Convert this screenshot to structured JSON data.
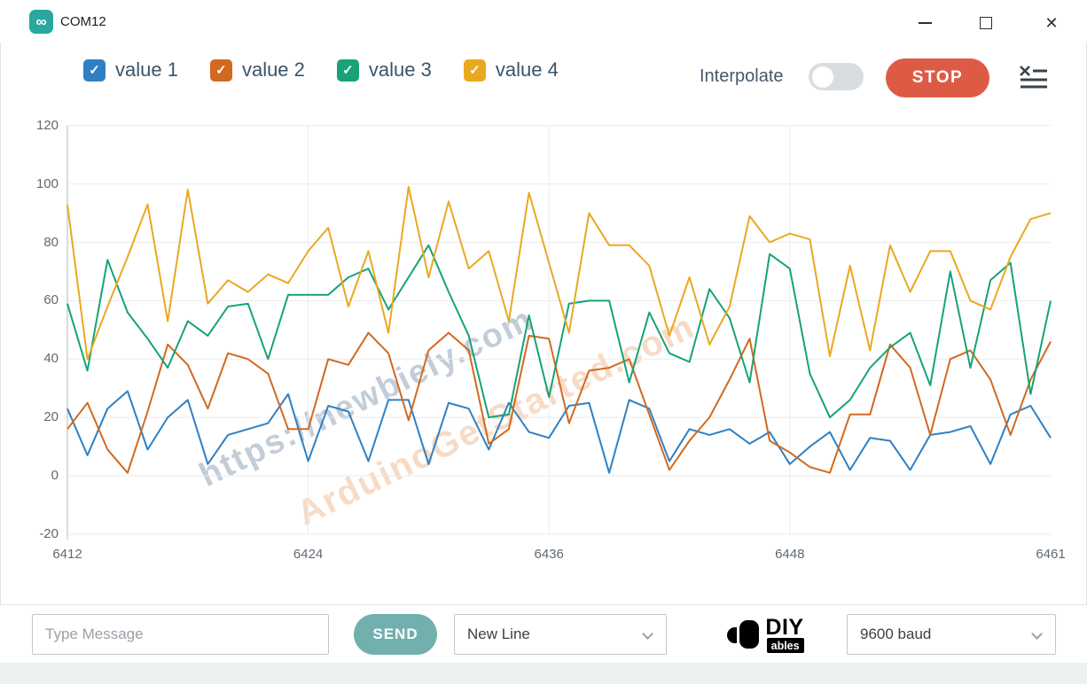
{
  "window": {
    "title": "COM12"
  },
  "toolbar": {
    "interpolate_label": "Interpolate",
    "interpolate_on": false,
    "stop_label": "STOP"
  },
  "watermarks": {
    "wm1": "https://newbiely.com",
    "wm2": "ArduinoGetStarted.com"
  },
  "chart_data": {
    "type": "line",
    "x_start": 6412,
    "x_ticks": [
      6412,
      6424,
      6436,
      6448,
      6461
    ],
    "y_ticks": [
      120,
      100,
      80,
      60,
      40,
      20,
      0,
      -20
    ],
    "ylim": [
      -20,
      120
    ],
    "grid": true,
    "legend_position": "top-left",
    "series": [
      {
        "name": "value 1",
        "color": "#2f80c3",
        "checked": true,
        "values": [
          23,
          7,
          23,
          29,
          9,
          20,
          26,
          4,
          14,
          16,
          18,
          28,
          5,
          24,
          22,
          5,
          26,
          26,
          4,
          25,
          23,
          9,
          25,
          15,
          13,
          24,
          25,
          1,
          26,
          23,
          5,
          16,
          14,
          16,
          11,
          15,
          4,
          10,
          15,
          2,
          13,
          12,
          2,
          14,
          15,
          17,
          4,
          21,
          24,
          13
        ]
      },
      {
        "name": "value 2",
        "color": "#d2691e",
        "checked": true,
        "values": [
          16,
          25,
          9,
          1,
          22,
          45,
          38,
          23,
          42,
          40,
          35,
          16,
          16,
          40,
          38,
          49,
          42,
          19,
          43,
          49,
          43,
          11,
          16,
          48,
          47,
          18,
          36,
          37,
          40,
          21,
          2,
          12,
          20,
          33,
          47,
          12,
          8,
          3,
          1,
          21,
          21,
          45,
          37,
          14,
          40,
          43,
          33,
          14,
          33,
          46
        ]
      },
      {
        "name": "value 3",
        "color": "#17a278",
        "checked": true,
        "values": [
          59,
          36,
          74,
          56,
          47,
          37,
          53,
          48,
          58,
          59,
          40,
          62,
          62,
          62,
          68,
          71,
          57,
          68,
          79,
          63,
          48,
          20,
          21,
          55,
          27,
          59,
          60,
          60,
          32,
          56,
          42,
          39,
          64,
          54,
          32,
          76,
          71,
          35,
          20,
          26,
          37,
          44,
          49,
          31,
          70,
          37,
          67,
          73,
          28,
          60
        ]
      },
      {
        "name": "value 4",
        "color": "#eaa821",
        "checked": true,
        "values": [
          93,
          40,
          58,
          75,
          93,
          53,
          98,
          59,
          67,
          63,
          69,
          66,
          77,
          85,
          58,
          77,
          49,
          99,
          68,
          94,
          71,
          77,
          53,
          97,
          73,
          49,
          90,
          79,
          79,
          72,
          48,
          68,
          45,
          58,
          89,
          80,
          83,
          81,
          41,
          72,
          43,
          79,
          63,
          77,
          77,
          60,
          57,
          75,
          88,
          90
        ]
      }
    ]
  },
  "bottom_bar": {
    "message_placeholder": "Type Message",
    "send_label": "SEND",
    "line_ending": "New Line",
    "baud": "9600 baud",
    "logo": {
      "line1": "DIY",
      "line2": "ables"
    }
  }
}
